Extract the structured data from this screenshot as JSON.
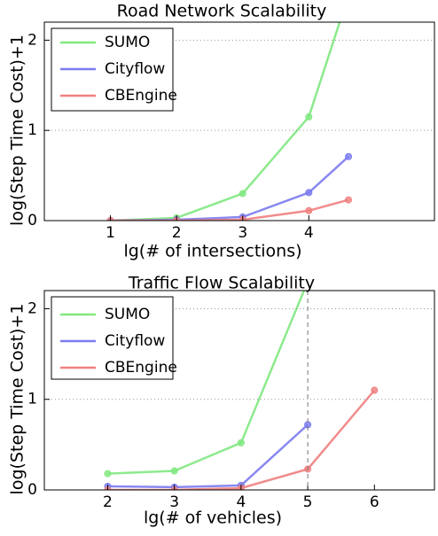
{
  "chart_data": [
    {
      "type": "line",
      "title": "Road Network Scalability",
      "xlabel": "lg(# of intersections)",
      "ylabel": "log(Step Time Cost)+1",
      "x": [
        1,
        2,
        3,
        4,
        4.6
      ],
      "series": [
        {
          "name": "SUMO",
          "color": "#80e880",
          "values": [
            0,
            0.03,
            0.3,
            1.15,
            2.5
          ]
        },
        {
          "name": "Cityflow",
          "color": "#7b7bf0",
          "values": [
            0,
            0.01,
            0.04,
            0.31,
            0.71
          ]
        },
        {
          "name": "CBEngine",
          "color": "#f08080",
          "values": [
            0,
            0,
            0.01,
            0.11,
            0.23
          ]
        }
      ],
      "xlim": [
        0,
        5.9
      ],
      "xticks": [
        1,
        2,
        3,
        4
      ],
      "ylim": [
        0,
        2.2
      ],
      "yticks": [
        0,
        1,
        2
      ],
      "grid": true,
      "legend": "upper left"
    },
    {
      "type": "line",
      "title": "Traffic Flow Scalability",
      "xlabel": "lg(# of vehicles)",
      "ylabel": "log(Step Time Cost)+1",
      "x": [
        2,
        3,
        4,
        5,
        6
      ],
      "series": [
        {
          "name": "SUMO",
          "color": "#80e880",
          "values": [
            0.18,
            0.21,
            0.52,
            2.3,
            null
          ]
        },
        {
          "name": "Cityflow",
          "color": "#7b7bf0",
          "values": [
            0.04,
            0.03,
            0.05,
            0.72,
            null
          ]
        },
        {
          "name": "CBEngine",
          "color": "#f08080",
          "values": [
            0,
            0,
            0.02,
            0.23,
            1.1
          ]
        }
      ],
      "xlim": [
        1.05,
        6.9
      ],
      "xticks": [
        2,
        3,
        4,
        5,
        6
      ],
      "ylim": [
        0,
        2.2
      ],
      "yticks": [
        0,
        1,
        2
      ],
      "grid": true,
      "legend": "upper left",
      "vline": 5
    }
  ]
}
